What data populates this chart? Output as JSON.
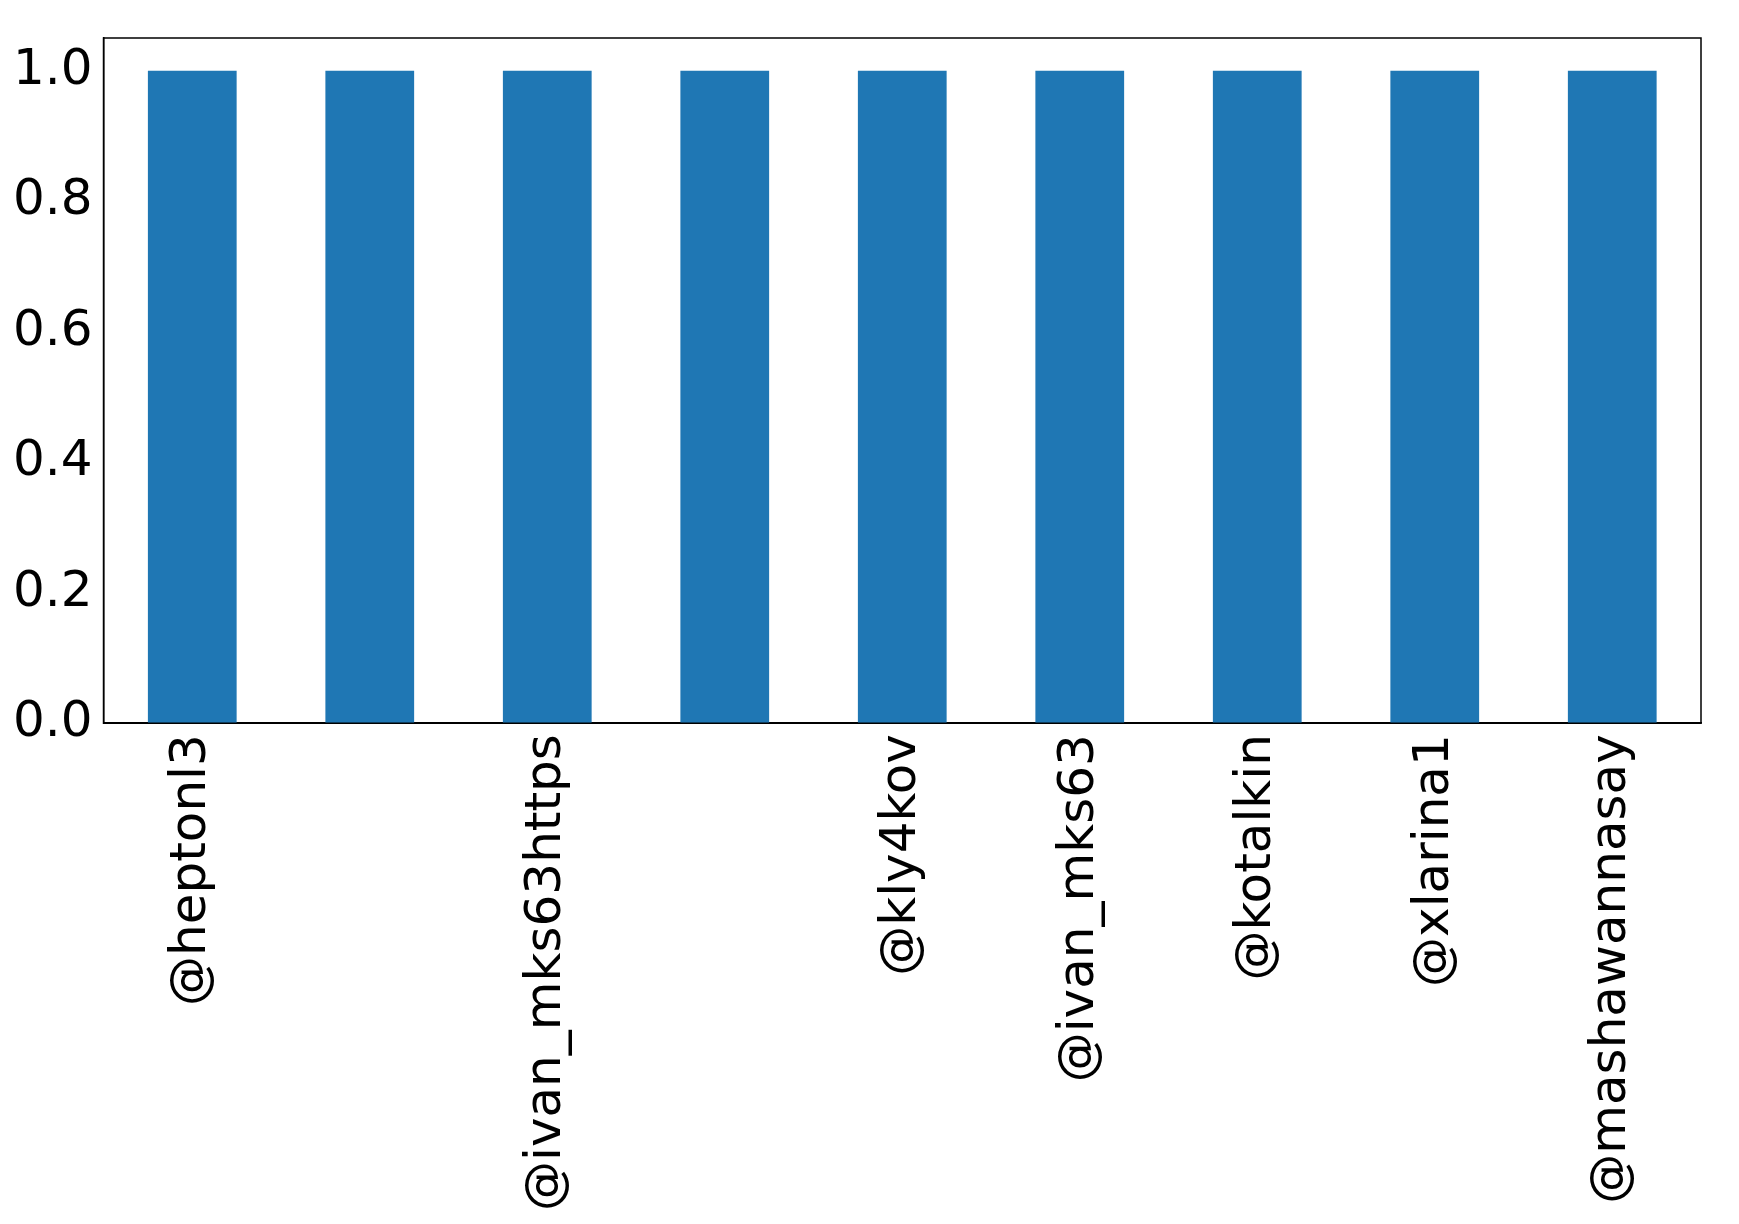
{
  "chart_data": {
    "type": "bar",
    "categories": [
      "@heptonl3",
      null,
      "@ivan_mks63https",
      null,
      "@kly4kov",
      "@ivan_mks63",
      "@kotalkin",
      "@xlarina1",
      "@mashawannasay"
    ],
    "values": [
      1,
      1,
      1,
      1,
      1,
      1,
      1,
      1,
      1
    ],
    "color": "#1f77b4",
    "ylim": [
      0,
      1.05
    ],
    "yticks": [
      {
        "value": 0,
        "label": "0.0"
      },
      {
        "value": 0.2,
        "label": "0.2"
      },
      {
        "value": 0.4,
        "label": "0.4"
      },
      {
        "value": 0.6,
        "label": "0.6"
      },
      {
        "value": 0.8,
        "label": "0.8"
      },
      {
        "value": 1,
        "label": "1.0"
      }
    ],
    "grid": false,
    "legend": false
  }
}
